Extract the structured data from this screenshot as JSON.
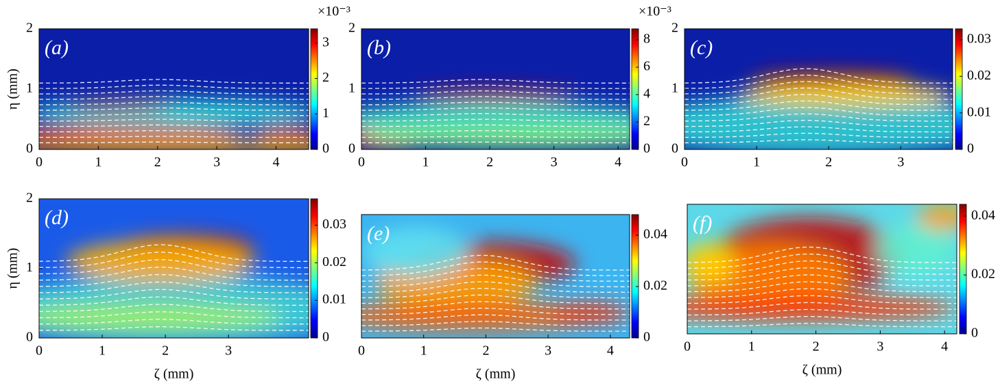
{
  "chart_data": [
    {
      "type": "heatmap",
      "panel_label": "(a)",
      "ylabel": "η (mm)",
      "xlim": [
        0,
        4.55
      ],
      "xticks": [
        0,
        1,
        2,
        3,
        4
      ],
      "ylim": [
        0,
        2
      ],
      "yticks": [
        0,
        1,
        2
      ],
      "clim": [
        0,
        3.4
      ],
      "cticks": [
        0,
        1,
        2,
        3
      ],
      "multiplier": "×10⁻³"
    },
    {
      "type": "heatmap",
      "panel_label": "(b)",
      "xlim": [
        0,
        4.18
      ],
      "xticks": [
        0,
        1,
        2,
        3,
        4
      ],
      "ylim": [
        0,
        2
      ],
      "yticks": [
        0,
        1,
        2
      ],
      "clim": [
        0,
        8.8
      ],
      "cticks": [
        0,
        2,
        4,
        6,
        8
      ],
      "multiplier": "×10⁻³"
    },
    {
      "type": "heatmap",
      "panel_label": "(c)",
      "xlim": [
        0,
        3.72
      ],
      "xticks": [
        0,
        1,
        2,
        3
      ],
      "ylim": [
        0,
        2
      ],
      "yticks": [
        0,
        1,
        2
      ],
      "clim": [
        0,
        0.033
      ],
      "cticks": [
        0,
        0.01,
        0.02,
        0.03
      ]
    },
    {
      "type": "heatmap",
      "panel_label": "(d)",
      "xlabel": "ζ (mm)",
      "ylabel": "η (mm)",
      "xlim": [
        0,
        4.27
      ],
      "xticks": [
        0,
        1,
        2,
        3
      ],
      "ylim": [
        0,
        2
      ],
      "yticks": [
        0,
        1,
        2
      ],
      "clim": [
        0,
        0.037
      ],
      "cticks": [
        0,
        0.01,
        0.02,
        0.03
      ]
    },
    {
      "type": "heatmap",
      "panel_label": "(e)",
      "xlabel": "ζ (mm)",
      "xlim": [
        0,
        4.31
      ],
      "xticks": [
        0,
        1,
        2,
        3,
        4
      ],
      "ylim": [
        0,
        1.77
      ],
      "clim": [
        0,
        0.048
      ],
      "cticks": [
        0,
        0.02,
        0.04
      ]
    },
    {
      "type": "heatmap",
      "panel_label": "(f)",
      "xlabel": "ζ (mm)",
      "xlim": [
        0,
        4.19
      ],
      "xticks": [
        0,
        1,
        2,
        3,
        4
      ],
      "ylim": [
        0,
        2.02
      ],
      "clim": [
        0,
        0.044
      ],
      "cticks": [
        0,
        0.02,
        0.04
      ]
    }
  ]
}
